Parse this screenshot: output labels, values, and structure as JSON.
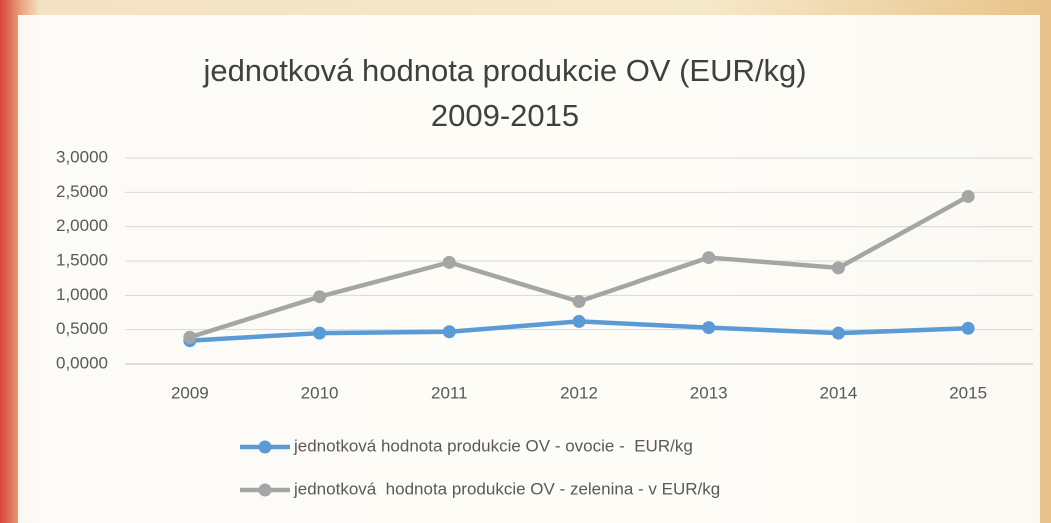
{
  "chart_data": {
    "type": "line",
    "title": [
      "jednotková hodnota produkcie OV (EUR/kg)",
      "2009-2015"
    ],
    "categories": [
      "2009",
      "2010",
      "2011",
      "2012",
      "2013",
      "2014",
      "2015"
    ],
    "series": [
      {
        "name": "jednotková hodnota produkcie OV - ovocie -  EUR/kg",
        "color": "#5b9bd5",
        "values": [
          0.34,
          0.45,
          0.47,
          0.62,
          0.53,
          0.45,
          0.52
        ]
      },
      {
        "name": "jednotková  hodnota produkcie OV - zelenina - v EUR/kg",
        "color": "#a5a5a5",
        "values": [
          0.39,
          0.98,
          1.48,
          0.91,
          1.55,
          1.4,
          2.44
        ]
      }
    ],
    "ylim": [
      0,
      3
    ],
    "yticks": [
      {
        "value": 0,
        "label": "0,0000"
      },
      {
        "value": 0.5,
        "label": "0,5000"
      },
      {
        "value": 1,
        "label": "1,0000"
      },
      {
        "value": 1.5,
        "label": "1,5000"
      },
      {
        "value": 2,
        "label": "2,0000"
      },
      {
        "value": 2.5,
        "label": "2,5000"
      },
      {
        "value": 3,
        "label": "3,0000"
      }
    ],
    "grid": true,
    "legend": "bottom"
  }
}
